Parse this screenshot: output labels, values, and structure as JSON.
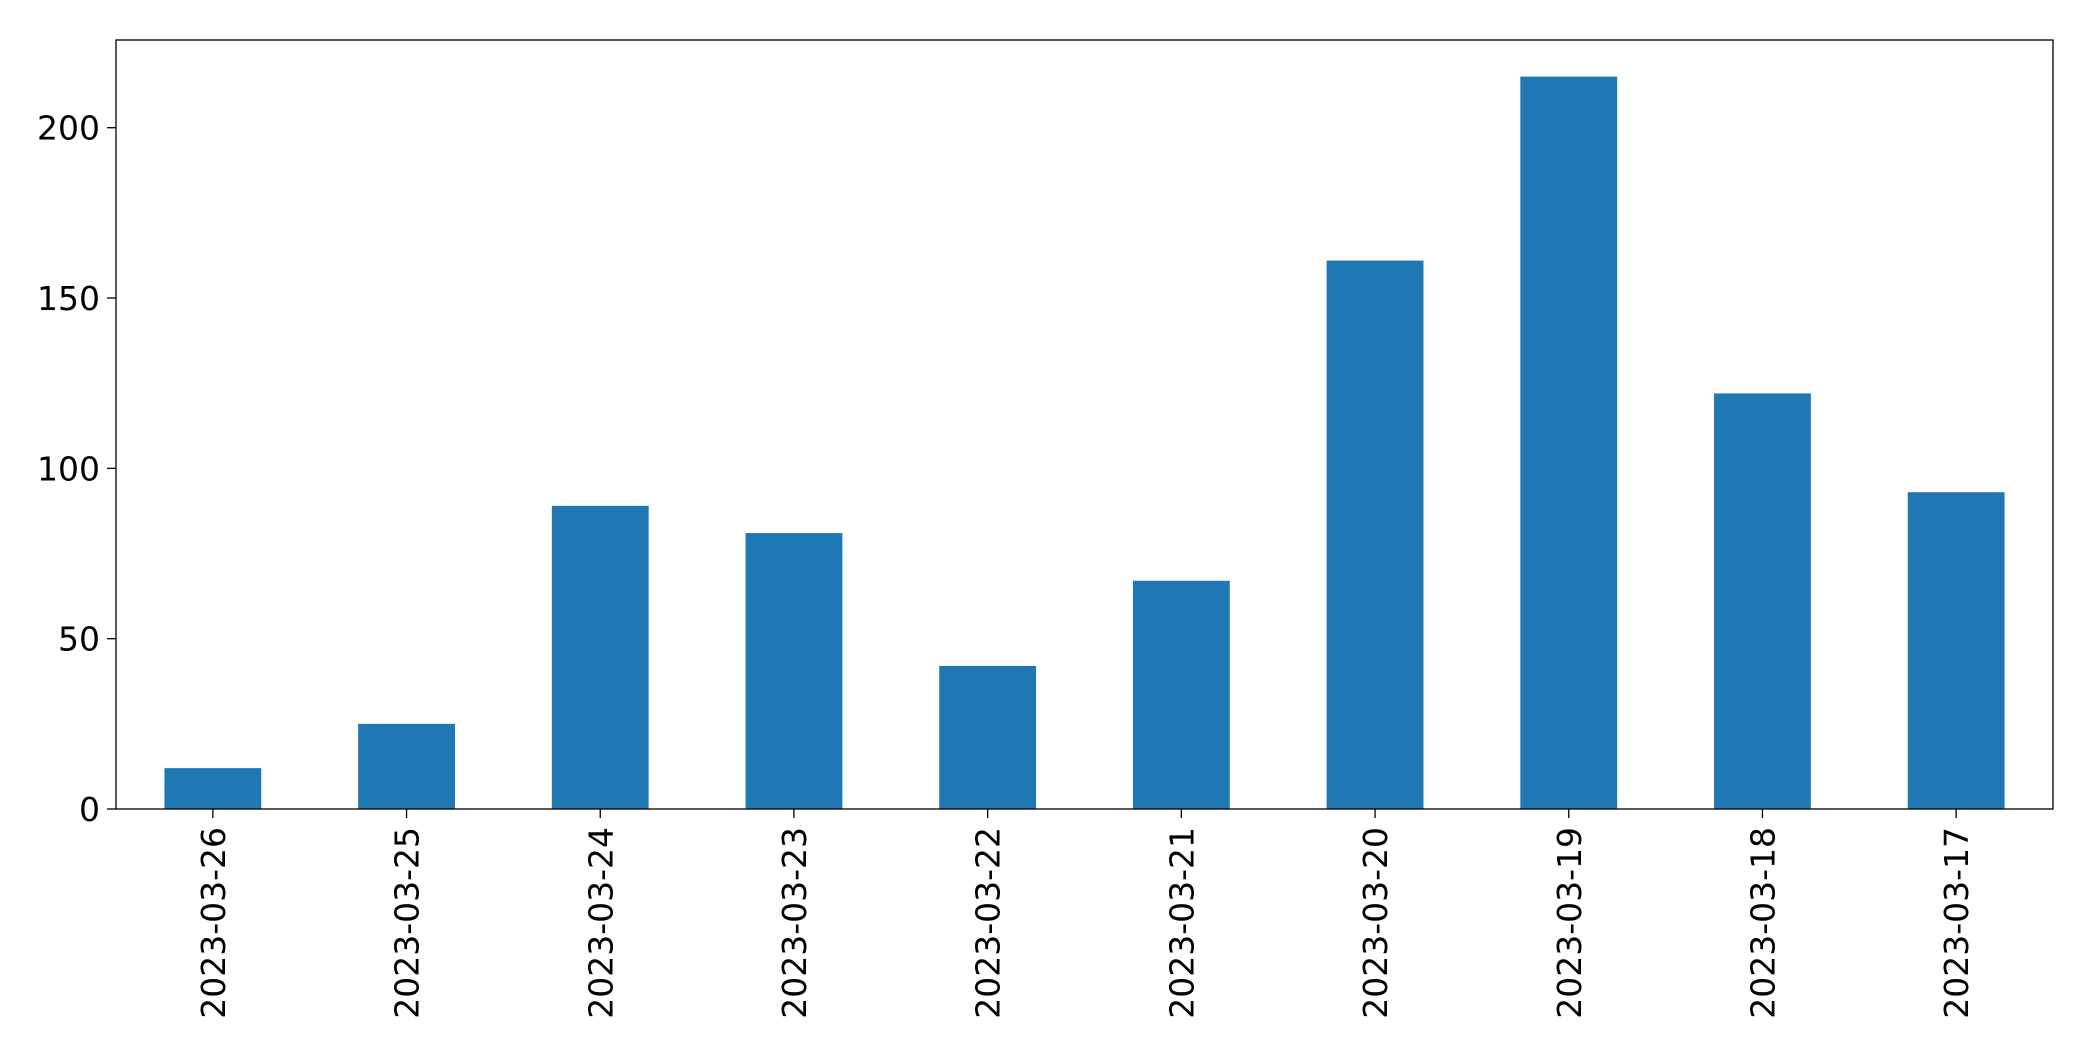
{
  "chart_data": {
    "type": "bar",
    "categories": [
      "2023-03-26",
      "2023-03-25",
      "2023-03-24",
      "2023-03-23",
      "2023-03-22",
      "2023-03-21",
      "2023-03-20",
      "2023-03-19",
      "2023-03-18",
      "2023-03-17"
    ],
    "values": [
      12,
      25,
      89,
      81,
      42,
      67,
      161,
      215,
      122,
      93
    ],
    "color": "#1f77b4",
    "ylim": [
      0,
      225.75
    ],
    "yticks": [
      0,
      50,
      100,
      150,
      200
    ],
    "grid": false
  }
}
